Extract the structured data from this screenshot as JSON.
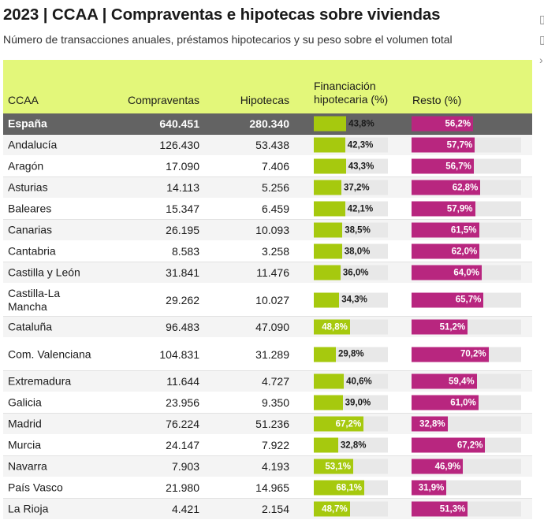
{
  "title": "2023 | CCAA | Compraventas e hipotecas sobre viviendas",
  "subtitle": "Número de transacciones anuales, préstamos hipotecarios y su peso sobre el volumen total",
  "colors": {
    "header_bg": "#e3f77a",
    "finance": "#a6c90e",
    "resto": "#b8267f",
    "total_row": "#636363"
  },
  "chart_data": {
    "type": "table",
    "columns": [
      "CCAA",
      "Compraventas",
      "Hipotecas",
      "Financiación hipotecaria (%)",
      "Resto (%)"
    ],
    "rows": [
      {
        "ccaa": "España",
        "compraventas": "640.451",
        "hipotecas": "280.340",
        "fin": 43.8,
        "fin_label": "43,8%",
        "resto": 56.2,
        "resto_label": "56,2%"
      },
      {
        "ccaa": "Andalucía",
        "compraventas": "126.430",
        "hipotecas": "53.438",
        "fin": 42.3,
        "fin_label": "42,3%",
        "resto": 57.7,
        "resto_label": "57,7%"
      },
      {
        "ccaa": "Aragón",
        "compraventas": "17.090",
        "hipotecas": "7.406",
        "fin": 43.3,
        "fin_label": "43,3%",
        "resto": 56.7,
        "resto_label": "56,7%"
      },
      {
        "ccaa": "Asturias",
        "compraventas": "14.113",
        "hipotecas": "5.256",
        "fin": 37.2,
        "fin_label": "37,2%",
        "resto": 62.8,
        "resto_label": "62,8%"
      },
      {
        "ccaa": "Baleares",
        "compraventas": "15.347",
        "hipotecas": "6.459",
        "fin": 42.1,
        "fin_label": "42,1%",
        "resto": 57.9,
        "resto_label": "57,9%"
      },
      {
        "ccaa": "Canarias",
        "compraventas": "26.195",
        "hipotecas": "10.093",
        "fin": 38.5,
        "fin_label": "38,5%",
        "resto": 61.5,
        "resto_label": "61,5%"
      },
      {
        "ccaa": "Cantabria",
        "compraventas": "8.583",
        "hipotecas": "3.258",
        "fin": 38.0,
        "fin_label": "38,0%",
        "resto": 62.0,
        "resto_label": "62,0%"
      },
      {
        "ccaa": "Castilla y León",
        "compraventas": "31.841",
        "hipotecas": "11.476",
        "fin": 36.0,
        "fin_label": "36,0%",
        "resto": 64.0,
        "resto_label": "64,0%"
      },
      {
        "ccaa": "Castilla-La Mancha",
        "compraventas": "29.262",
        "hipotecas": "10.027",
        "fin": 34.3,
        "fin_label": "34,3%",
        "resto": 65.7,
        "resto_label": "65,7%"
      },
      {
        "ccaa": "Cataluña",
        "compraventas": "96.483",
        "hipotecas": "47.090",
        "fin": 48.8,
        "fin_label": "48,8%",
        "resto": 51.2,
        "resto_label": "51,2%"
      },
      {
        "ccaa": "Com. Valenciana",
        "compraventas": "104.831",
        "hipotecas": "31.289",
        "fin": 29.8,
        "fin_label": "29,8%",
        "resto": 70.2,
        "resto_label": "70,2%"
      },
      {
        "ccaa": "Extremadura",
        "compraventas": "11.644",
        "hipotecas": "4.727",
        "fin": 40.6,
        "fin_label": "40,6%",
        "resto": 59.4,
        "resto_label": "59,4%"
      },
      {
        "ccaa": "Galicia",
        "compraventas": "23.956",
        "hipotecas": "9.350",
        "fin": 39.0,
        "fin_label": "39,0%",
        "resto": 61.0,
        "resto_label": "61,0%"
      },
      {
        "ccaa": "Madrid",
        "compraventas": "76.224",
        "hipotecas": "51.236",
        "fin": 67.2,
        "fin_label": "67,2%",
        "resto": 32.8,
        "resto_label": "32,8%"
      },
      {
        "ccaa": "Murcia",
        "compraventas": "24.147",
        "hipotecas": "7.922",
        "fin": 32.8,
        "fin_label": "32,8%",
        "resto": 67.2,
        "resto_label": "67,2%"
      },
      {
        "ccaa": "Navarra",
        "compraventas": "7.903",
        "hipotecas": "4.193",
        "fin": 53.1,
        "fin_label": "53,1%",
        "resto": 46.9,
        "resto_label": "46,9%"
      },
      {
        "ccaa": "País Vasco",
        "compraventas": "21.980",
        "hipotecas": "14.965",
        "fin": 68.1,
        "fin_label": "68,1%",
        "resto": 31.9,
        "resto_label": "31,9%"
      },
      {
        "ccaa": "La Rioja",
        "compraventas": "4.421",
        "hipotecas": "2.154",
        "fin": 48.7,
        "fin_label": "48,7%",
        "resto": 51.3,
        "resto_label": "51,3%"
      }
    ]
  }
}
